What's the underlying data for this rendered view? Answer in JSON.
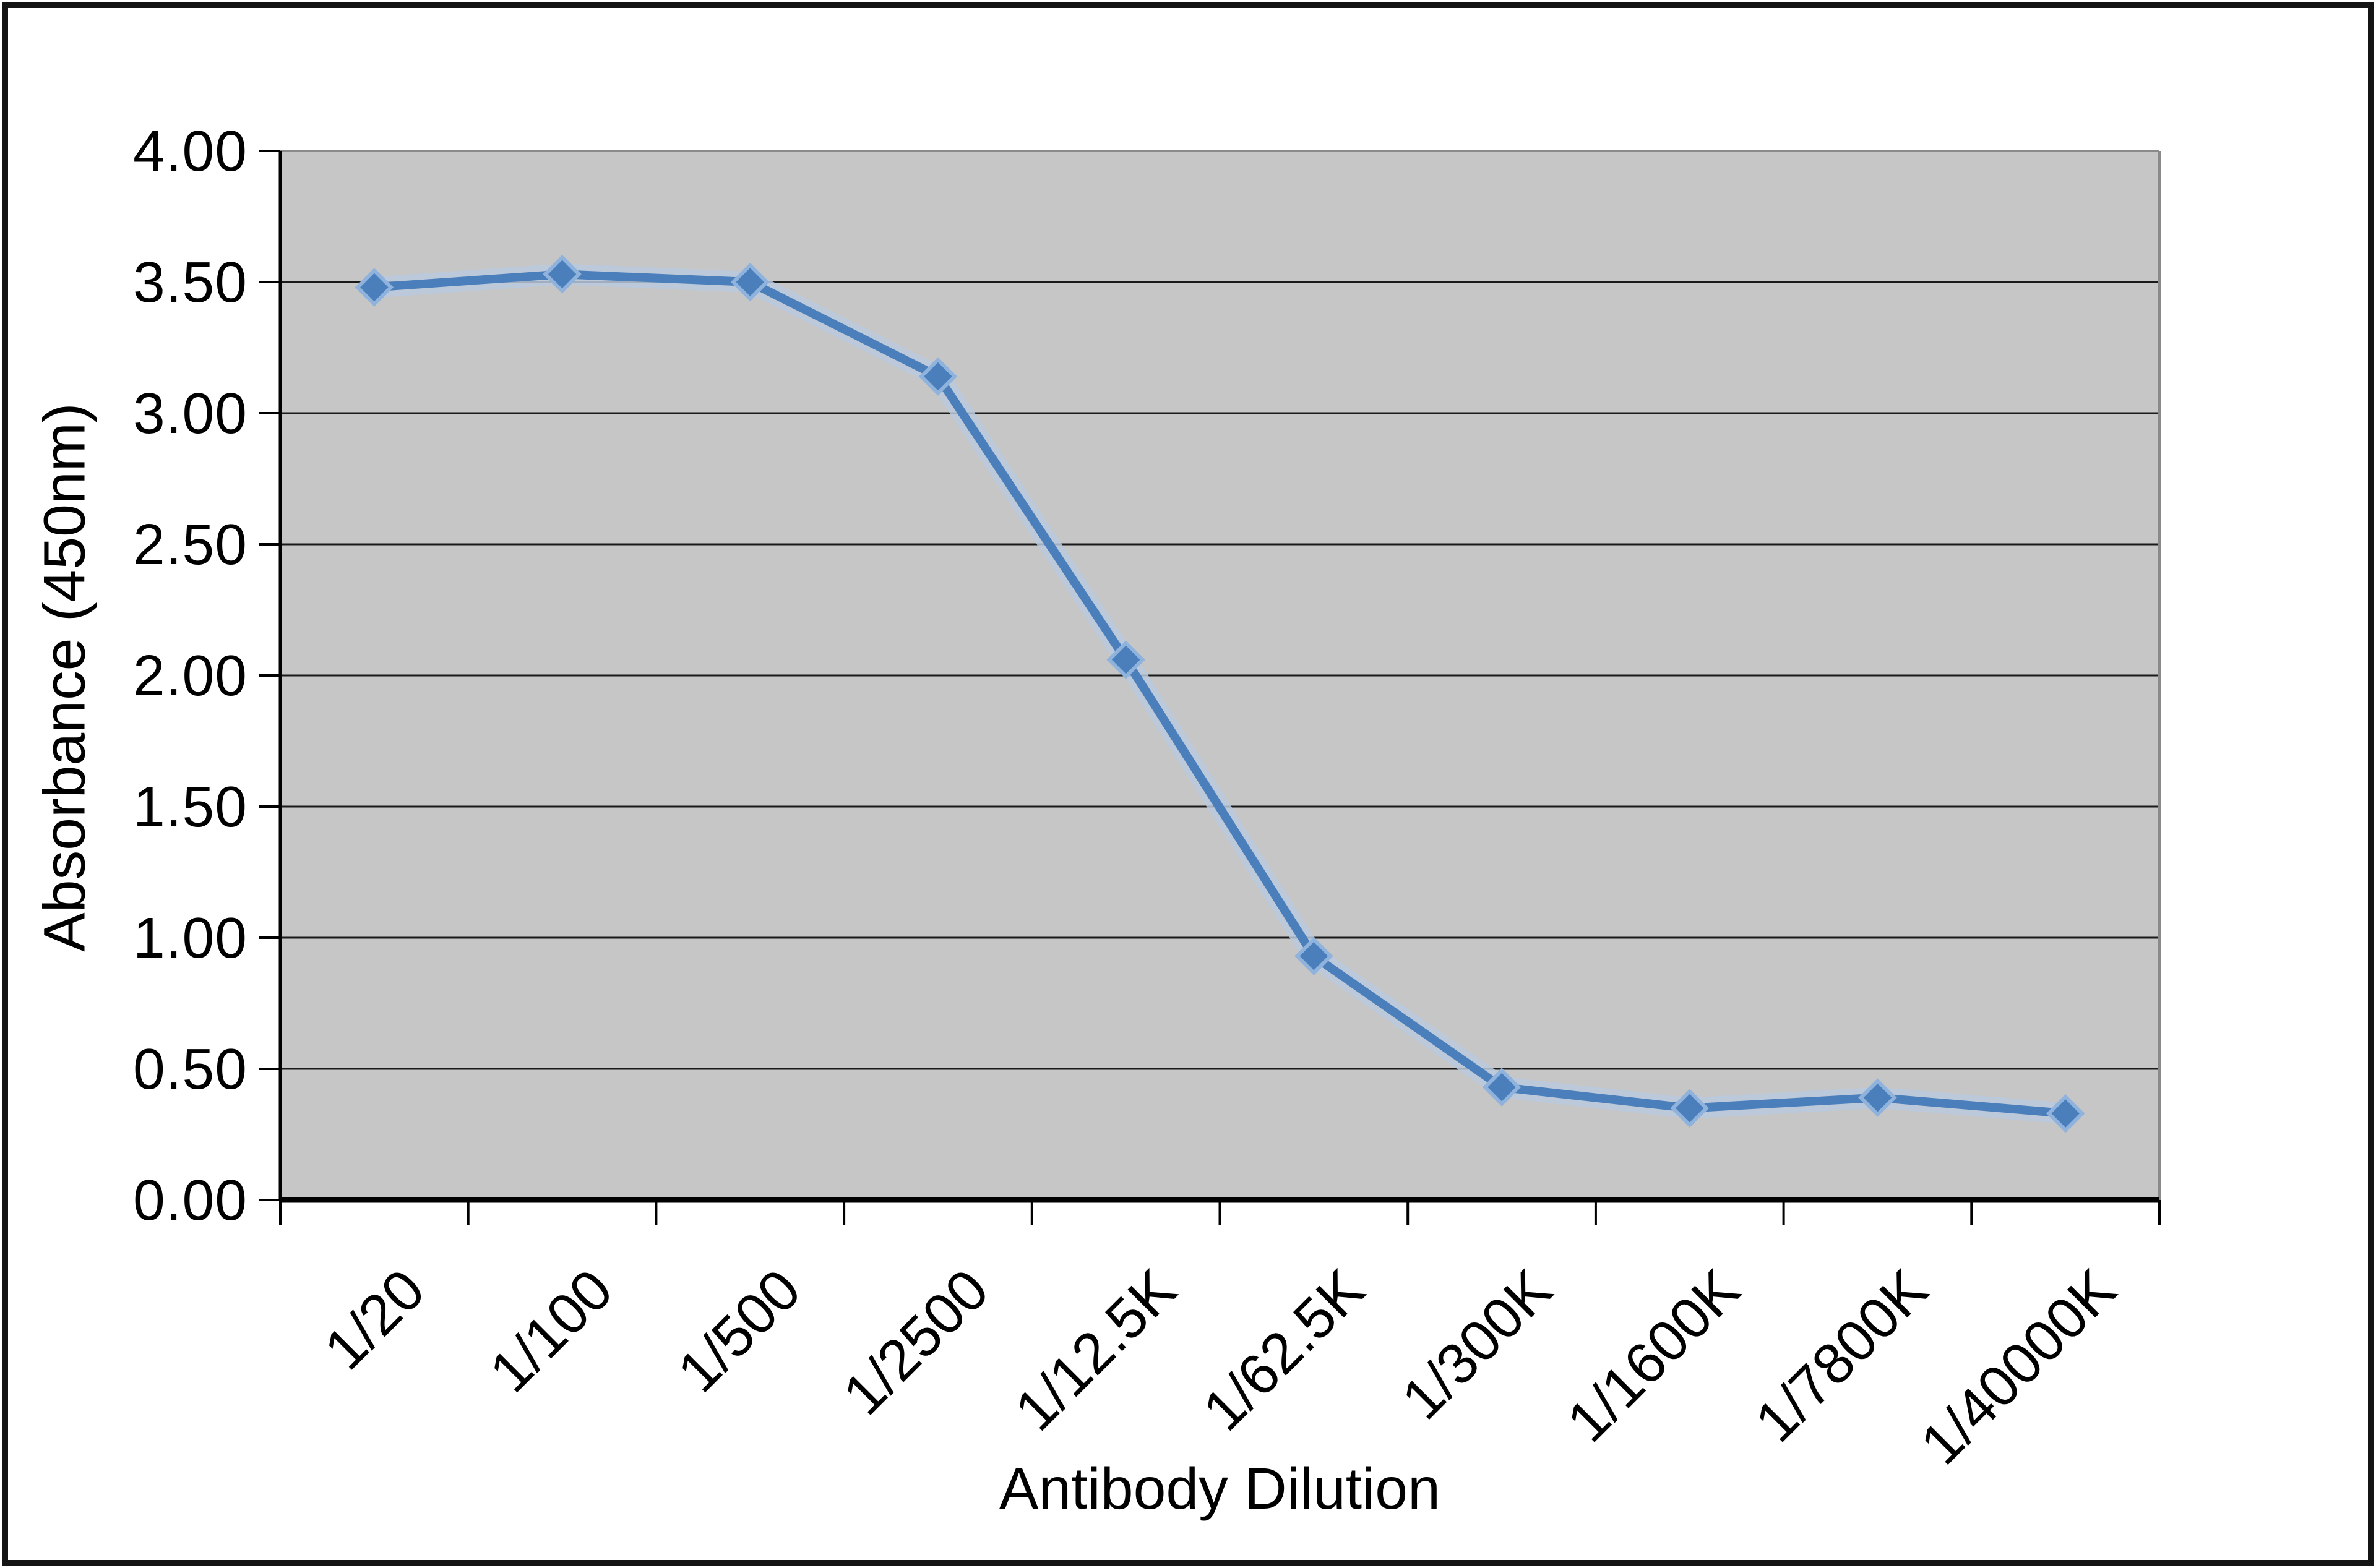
{
  "page": {
    "background_color": "#ffffff",
    "frame_border_color": "#141414"
  },
  "chart_data": {
    "type": "line",
    "title": "",
    "xlabel": "Antibody Dilution",
    "ylabel": "Absorbance (450nm)",
    "categories": [
      "1/20",
      "1/100",
      "1/500",
      "1/2500",
      "1/12.5K",
      "1/62.5K",
      "1/300K",
      "1/1600K",
      "1/7800K",
      "1/40000K"
    ],
    "values": [
      3.48,
      3.53,
      3.5,
      3.14,
      2.06,
      0.93,
      0.43,
      0.35,
      0.39,
      0.33
    ],
    "ylim": [
      0,
      4
    ],
    "ytick_step": 0.5,
    "ytick_labels": [
      "0.00",
      "0.50",
      "1.00",
      "1.50",
      "2.00",
      "2.50",
      "3.00",
      "3.50",
      "4.00"
    ],
    "grid": "horizontal-only",
    "legend": "none",
    "plot_bg_color": "#c6c6c6",
    "plot_border_color": "#8a8a8a",
    "gridline_color": "#1a1a1a",
    "axis_color": "#000000",
    "line_color": "#4b7fbb",
    "line_halo_color": "#b9c9dd",
    "marker": "diamond",
    "marker_color": "#4b7fbb",
    "marker_edge_color": "#8fb3dc"
  }
}
